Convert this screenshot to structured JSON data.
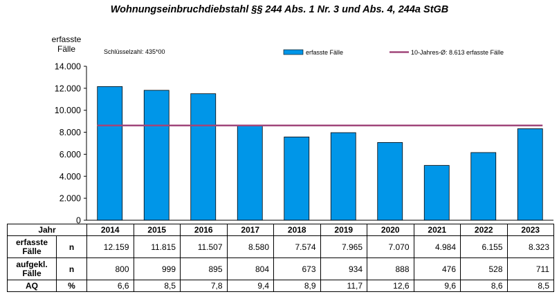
{
  "title": "Wohnungseinbruchdiebstahl §§ 244 Abs. 1 Nr. 3 und Abs. 4, 244a StGB",
  "key_number": "Schlüsselzahl: 435*00",
  "chart_data": {
    "type": "bar",
    "title": "Wohnungseinbruchdiebstahl §§ 244 Abs. 1 Nr. 3 und Abs. 4, 244a StGB",
    "ylabel": "erfasste\nFälle",
    "ylim": [
      0,
      14000
    ],
    "yticks": [
      "0",
      "2.000",
      "4.000",
      "6.000",
      "8.000",
      "10.000",
      "12.000",
      "14.000"
    ],
    "ytick_values": [
      0,
      2000,
      4000,
      6000,
      8000,
      10000,
      12000,
      14000
    ],
    "categories": [
      "2014",
      "2015",
      "2016",
      "2017",
      "2018",
      "2019",
      "2020",
      "2021",
      "2022",
      "2023"
    ],
    "series": [
      {
        "name": "erfasste Fälle",
        "type": "bar",
        "color": "#0096e8",
        "values": [
          12159,
          11815,
          11507,
          8580,
          7574,
          7965,
          7070,
          4984,
          6155,
          8323
        ]
      },
      {
        "name": "10-Jahres-Ø: 8.613 erfasste Fälle",
        "type": "line",
        "color": "#a0467a",
        "value": 8613
      }
    ],
    "legend_position": "top-right",
    "grid": false
  },
  "table": {
    "header_label": "Jahr",
    "years": [
      "2014",
      "2015",
      "2016",
      "2017",
      "2018",
      "2019",
      "2020",
      "2021",
      "2022",
      "2023"
    ],
    "rows": [
      {
        "label": "erfasste\nFälle",
        "unit": "n",
        "values": [
          "12.159",
          "11.815",
          "11.507",
          "8.580",
          "7.574",
          "7.965",
          "7.070",
          "4.984",
          "6.155",
          "8.323"
        ]
      },
      {
        "label": "aufgekl.\nFälle",
        "unit": "n",
        "values": [
          "800",
          "999",
          "895",
          "804",
          "673",
          "934",
          "888",
          "476",
          "528",
          "711"
        ]
      },
      {
        "label": "AQ",
        "unit": "%",
        "values": [
          "6,6",
          "8,5",
          "7,8",
          "9,4",
          "8,9",
          "11,7",
          "12,6",
          "9,6",
          "8,6",
          "8,5"
        ]
      }
    ]
  }
}
